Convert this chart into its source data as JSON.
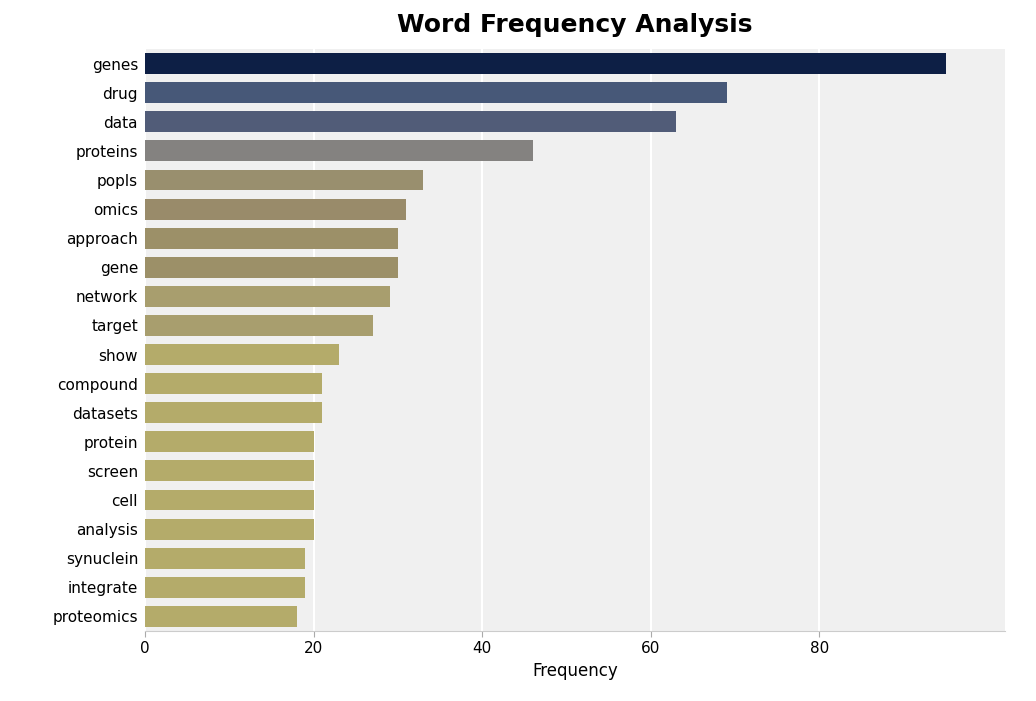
{
  "title": "Word Frequency Analysis",
  "xlabel": "Frequency",
  "categories": [
    "genes",
    "drug",
    "data",
    "proteins",
    "popls",
    "omics",
    "approach",
    "gene",
    "network",
    "target",
    "show",
    "compound",
    "datasets",
    "protein",
    "screen",
    "cell",
    "analysis",
    "synuclein",
    "integrate",
    "proteomics"
  ],
  "values": [
    95,
    69,
    63,
    46,
    33,
    31,
    30,
    30,
    29,
    27,
    23,
    21,
    21,
    20,
    20,
    20,
    20,
    19,
    19,
    18
  ],
  "bar_colors": [
    "#0d1f45",
    "#475878",
    "#515c78",
    "#848280",
    "#998f6e",
    "#998b6a",
    "#9c9068",
    "#9c9068",
    "#a89e6e",
    "#a89e6e",
    "#b4ab6a",
    "#b4ab6a",
    "#b4ab6a",
    "#b4ab6a",
    "#b4ab6a",
    "#b4ab6a",
    "#b4ab6a",
    "#b4ab6a",
    "#b4ab6a",
    "#b4ab6a"
  ],
  "figure_bg": "#ffffff",
  "axes_bg": "#f0f0f0",
  "title_fontsize": 18,
  "label_fontsize": 12,
  "tick_fontsize": 11,
  "xticks": [
    0,
    20,
    40,
    60,
    80
  ],
  "xlim": [
    0,
    102
  ],
  "bar_height": 0.72
}
